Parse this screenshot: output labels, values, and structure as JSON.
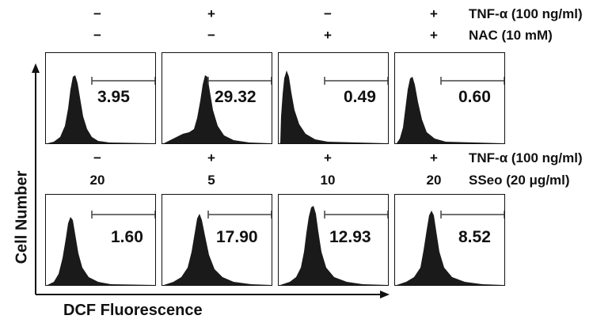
{
  "top_header": {
    "signs_row1": [
      "−",
      "+",
      "−",
      "+"
    ],
    "signs_row2": [
      "−",
      "−",
      "+",
      "+"
    ],
    "cond_row1": "TNF-α (100 ng/ml)",
    "cond_row2": "NAC (10 mM)"
  },
  "bottom_header": {
    "signs_row1": [
      "−",
      "+",
      "+",
      "+"
    ],
    "doses_row2": [
      "20",
      "5",
      "10",
      "20"
    ],
    "cond_row1": "TNF-α (100 ng/ml)",
    "cond_row2": "SSeo (20 μg/ml)"
  },
  "panels_top": [
    {
      "value": "3.95"
    },
    {
      "value": "29.32"
    },
    {
      "value": "0.49"
    },
    {
      "value": "0.60"
    }
  ],
  "panels_bottom": [
    {
      "value": "1.60"
    },
    {
      "value": "17.90"
    },
    {
      "value": "12.93"
    },
    {
      "value": "8.52"
    }
  ],
  "axes": {
    "ylabel": "Cell Number",
    "xlabel": "DCF Fluorescence"
  }
}
